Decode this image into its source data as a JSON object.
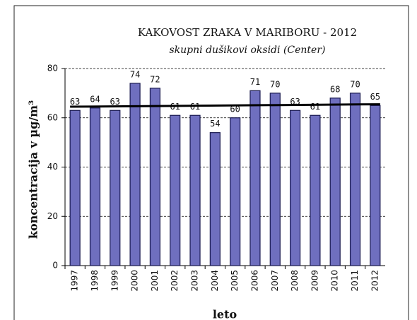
{
  "chart_data": {
    "type": "bar",
    "title": "KAKOVOST ZRAKA V MARIBORU - 2012",
    "subtitle": "skupni dušikovi oksidi (Center)",
    "y_label": "koncentracija v µg/m³",
    "x_label": "leto",
    "categories": [
      "1997",
      "1998",
      "1999",
      "2000",
      "2001",
      "2002",
      "2003",
      "2004",
      "2005",
      "2006",
      "2007",
      "2008",
      "2009",
      "2010",
      "2011",
      "2012"
    ],
    "values": [
      63,
      64,
      63,
      74,
      72,
      61,
      61,
      54,
      60,
      71,
      70,
      63,
      61,
      68,
      70,
      65
    ],
    "color": "#6f6fbf",
    "ylim": [
      0,
      80
    ],
    "yticks": [
      0,
      20,
      40,
      60,
      80
    ],
    "grid": true,
    "trendline": [
      64.5,
      65.5
    ]
  }
}
